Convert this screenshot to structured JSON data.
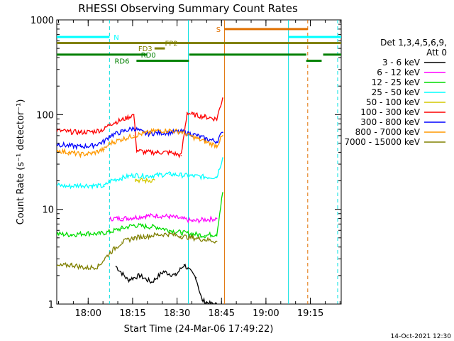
{
  "chart_data": {
    "type": "line",
    "title": "RHESSI Observing Summary Count Rates",
    "xlabel": "Start Time (24-Mar-06 17:49:22)",
    "ylabel": "Count Rate (s⁻¹ detector⁻¹)",
    "y_scale": "log",
    "ylim": [
      1,
      1000
    ],
    "y_ticks": [
      "1",
      "10",
      "100",
      "1000"
    ],
    "x_range_minutes": [
      0,
      96
    ],
    "x_ticks": [
      {
        "minute": 10.6,
        "label": "18:00"
      },
      {
        "minute": 25.6,
        "label": "18:15"
      },
      {
        "minute": 40.6,
        "label": "18:30"
      },
      {
        "minute": 55.6,
        "label": "18:45"
      },
      {
        "minute": 70.6,
        "label": "19:00"
      },
      {
        "minute": 85.6,
        "label": "19:15"
      }
    ],
    "legend_header": [
      "Det 1,3,4,5,6,9,",
      "Att 0"
    ],
    "legend_placement": "right",
    "footer_date": "14-Oct-2021 12:30",
    "grid": false,
    "vertical_lines": [
      {
        "minute": 17.8,
        "color": "#00e0e0",
        "style": "dashed"
      },
      {
        "minute": 44.4,
        "color": "#00e0e0",
        "style": "solid"
      },
      {
        "minute": 56.6,
        "color": "#e07000",
        "style": "solid"
      },
      {
        "minute": 78.2,
        "color": "#00e0e0",
        "style": "solid"
      },
      {
        "minute": 84.7,
        "color": "#e07000",
        "style": "dashed"
      },
      {
        "minute": 94.8,
        "color": "#00e0e0",
        "style": "dashed"
      }
    ],
    "flags": [
      {
        "label": "N",
        "color": "#00ffff",
        "row_value": 660,
        "segments": [
          [
            0,
            17.8
          ],
          [
            78.2,
            96
          ]
        ],
        "label_minute": 19.2
      },
      {
        "label": "S",
        "color": "#e07000",
        "row_value": 800,
        "segments": [
          [
            56.6,
            84.7
          ]
        ],
        "label_minute": 53.8
      },
      {
        "label": "FP2",
        "color": "#808000",
        "row_value": 570,
        "segments": [
          [
            0,
            96
          ]
        ],
        "label_minute": 36.5
      },
      {
        "label": "FD3",
        "color": "#808000",
        "row_value": 500,
        "segments": [
          [
            33,
            36.5
          ]
        ],
        "label_minute": 27.5
      },
      {
        "label": "RD0",
        "color": "#008000",
        "row_value": 430,
        "segments": [
          [
            0,
            30.4
          ],
          [
            44.7,
            84.2
          ],
          [
            89.9,
            96
          ]
        ],
        "label_minute": 28.4
      },
      {
        "label": "RD6",
        "color": "#008000",
        "row_value": 370,
        "segments": [
          [
            26.9,
            44.6
          ],
          [
            84.2,
            89.4
          ]
        ],
        "label_minute": 19.5
      }
    ],
    "series": [
      {
        "name": "3 - 6 keV",
        "color": "#000000",
        "x": [
          20,
          24,
          28,
          32,
          36,
          40,
          43,
          47,
          49,
          52,
          54
        ],
        "y": [
          2.5,
          1.8,
          2.0,
          1.7,
          2.2,
          2.0,
          2.6,
          1.9,
          1.1,
          1.0,
          1.0
        ]
      },
      {
        "name": "6 - 12 keV",
        "color": "#ff00ff",
        "x": [
          18,
          22,
          26,
          30,
          34,
          38,
          42,
          46,
          50,
          54
        ],
        "y": [
          8,
          8,
          8.2,
          8.5,
          8.6,
          8.4,
          8.0,
          7.5,
          7.8,
          8.0
        ]
      },
      {
        "name": "12 - 25 keV",
        "color": "#00dd00",
        "x": [
          0,
          5,
          10,
          14,
          18,
          22,
          26,
          30,
          34,
          38,
          42,
          46,
          50,
          54,
          56
        ],
        "y": [
          5.5,
          5.4,
          5.6,
          5.5,
          5.8,
          6.3,
          6.8,
          6.6,
          6.5,
          6.0,
          5.7,
          5.5,
          5.3,
          5.5,
          15
        ]
      },
      {
        "name": "25 - 50 keV",
        "color": "#00ffff",
        "x": [
          0,
          4,
          8,
          12,
          16,
          18,
          22,
          26,
          30,
          34,
          38,
          42,
          46,
          50,
          54,
          56
        ],
        "y": [
          18,
          17.5,
          18,
          17.8,
          17.5,
          20,
          21.5,
          23,
          22.5,
          23,
          23.5,
          23,
          22.5,
          22,
          22,
          35
        ]
      },
      {
        "name": "50 - 100 keV",
        "color": "#d4c800",
        "x": [
          26.5,
          30,
          33
        ],
        "y": [
          20.5,
          20,
          20.5
        ]
      },
      {
        "name": "100 - 300 keV",
        "color": "#ff0000",
        "x": [
          0,
          4,
          8,
          12,
          16,
          18,
          22,
          26,
          27,
          30,
          34,
          38,
          42,
          44,
          46,
          50,
          54,
          56
        ],
        "y": [
          68,
          66,
          65,
          66,
          70,
          80,
          88,
          100,
          42,
          40,
          40,
          40,
          37,
          105,
          100,
          95,
          90,
          150
        ]
      },
      {
        "name": "300 - 800 keV",
        "color": "#0000ff",
        "x": [
          0,
          4,
          8,
          12,
          16,
          18,
          22,
          26,
          30,
          34,
          38,
          42,
          46,
          50,
          54,
          56
        ],
        "y": [
          49,
          47,
          46,
          47,
          52,
          60,
          66,
          72,
          63,
          64,
          65,
          66,
          62,
          56,
          52,
          65
        ]
      },
      {
        "name": "800 - 7000 keV",
        "color": "#ff9900",
        "x": [
          0,
          4,
          8,
          12,
          16,
          18,
          22,
          26,
          30,
          34,
          38,
          42,
          46,
          50,
          54,
          56
        ],
        "y": [
          42,
          40,
          38,
          39,
          43,
          50,
          55,
          60,
          64,
          68,
          68,
          66,
          58,
          52,
          47,
          60
        ]
      },
      {
        "name": "7000 - 15000 keV",
        "color": "#808000",
        "x": [
          0,
          5,
          10,
          14,
          18,
          22,
          26,
          30,
          34,
          38,
          42,
          46,
          50,
          54
        ],
        "y": [
          2.5,
          2.6,
          2.4,
          2.5,
          3.5,
          4.5,
          5.0,
          5.2,
          5.4,
          5.5,
          5.2,
          5.0,
          4.8,
          4.6
        ]
      }
    ]
  }
}
